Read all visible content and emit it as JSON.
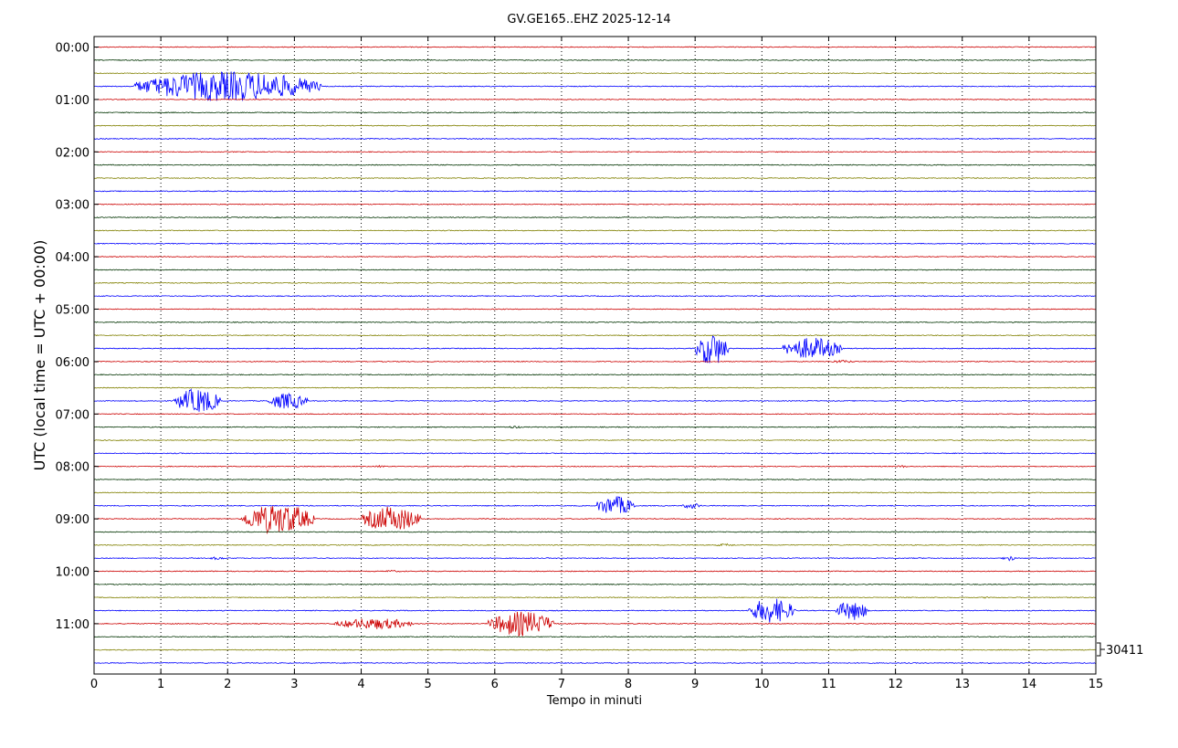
{
  "chart_data": {
    "type": "line",
    "title": "GV.GE165..EHZ 2025-12-14",
    "xlabel": "Tempo in minuti",
    "ylabel": "UTC (local time = UTC + 00:00)",
    "xlim": [
      0,
      15
    ],
    "x_ticks": [
      "0",
      "1",
      "2",
      "3",
      "4",
      "5",
      "6",
      "7",
      "8",
      "9",
      "10",
      "11",
      "12",
      "13",
      "14",
      "15"
    ],
    "y_ticks": [
      "00:00",
      "01:00",
      "02:00",
      "03:00",
      "04:00",
      "05:00",
      "06:00",
      "07:00",
      "08:00",
      "09:00",
      "10:00",
      "11:00"
    ],
    "grid": "vertical dotted",
    "trace_interval_minutes": 15,
    "trace_count": 48,
    "series_colors": [
      "#cc0000",
      "#003300",
      "#808000",
      "#0000ff"
    ],
    "scale_label": "30411",
    "events": [
      {
        "trace": 3,
        "start": 0.6,
        "end": 3.4,
        "amplitude": 0.55
      },
      {
        "trace": 23,
        "start": 9.0,
        "end": 9.5,
        "amplitude": 0.6
      },
      {
        "trace": 23,
        "start": 10.3,
        "end": 11.2,
        "amplitude": 0.4
      },
      {
        "trace": 24,
        "start": 11.0,
        "end": 11.4,
        "amplitude": 0.05
      },
      {
        "trace": 27,
        "start": 1.2,
        "end": 1.9,
        "amplitude": 0.45
      },
      {
        "trace": 27,
        "start": 2.6,
        "end": 3.2,
        "amplitude": 0.3
      },
      {
        "trace": 29,
        "start": 6.2,
        "end": 6.4,
        "amplitude": 0.05
      },
      {
        "trace": 32,
        "start": 4.2,
        "end": 4.4,
        "amplitude": 0.04
      },
      {
        "trace": 32,
        "start": 12.0,
        "end": 12.2,
        "amplitude": 0.04
      },
      {
        "trace": 35,
        "start": 7.5,
        "end": 8.1,
        "amplitude": 0.35
      },
      {
        "trace": 35,
        "start": 8.8,
        "end": 9.1,
        "amplitude": 0.1
      },
      {
        "trace": 36,
        "start": 2.2,
        "end": 3.3,
        "amplitude": 0.55
      },
      {
        "trace": 36,
        "start": 4.0,
        "end": 4.9,
        "amplitude": 0.45
      },
      {
        "trace": 38,
        "start": 9.3,
        "end": 9.6,
        "amplitude": 0.05
      },
      {
        "trace": 39,
        "start": 1.7,
        "end": 2.0,
        "amplitude": 0.05
      },
      {
        "trace": 39,
        "start": 13.6,
        "end": 13.8,
        "amplitude": 0.1
      },
      {
        "trace": 40,
        "start": 4.3,
        "end": 4.6,
        "amplitude": 0.04
      },
      {
        "trace": 42,
        "start": 13.3,
        "end": 13.5,
        "amplitude": 0.04
      },
      {
        "trace": 43,
        "start": 9.8,
        "end": 10.5,
        "amplitude": 0.45
      },
      {
        "trace": 43,
        "start": 11.1,
        "end": 11.6,
        "amplitude": 0.35
      },
      {
        "trace": 44,
        "start": 3.6,
        "end": 4.8,
        "amplitude": 0.2
      },
      {
        "trace": 44,
        "start": 5.9,
        "end": 6.9,
        "amplitude": 0.45
      }
    ]
  }
}
